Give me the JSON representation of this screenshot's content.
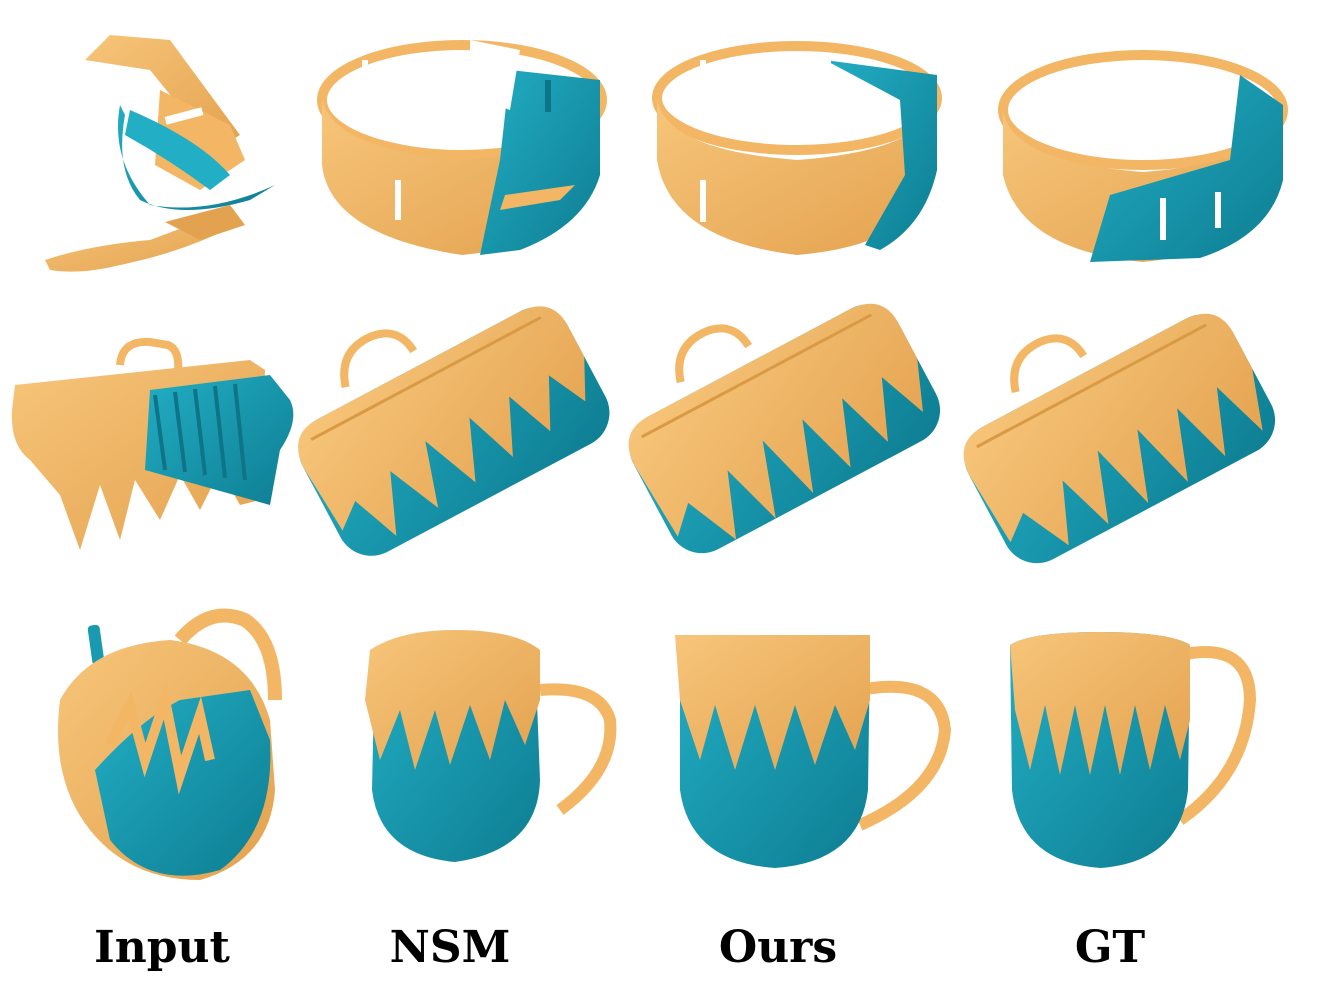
{
  "figure": {
    "columns": [
      {
        "id": "input",
        "label": "Input"
      },
      {
        "id": "nsm",
        "label": "NSM"
      },
      {
        "id": "ours",
        "label": "Ours"
      },
      {
        "id": "gt",
        "label": "GT"
      }
    ],
    "rows": [
      "ring",
      "suitcase",
      "mug"
    ],
    "colors": {
      "part_a": "#F2B665",
      "part_a_shade": "#D99A45",
      "part_b": "#1A9AB0",
      "part_b_shade": "#0F7488",
      "background": "#FFFFFF"
    }
  }
}
